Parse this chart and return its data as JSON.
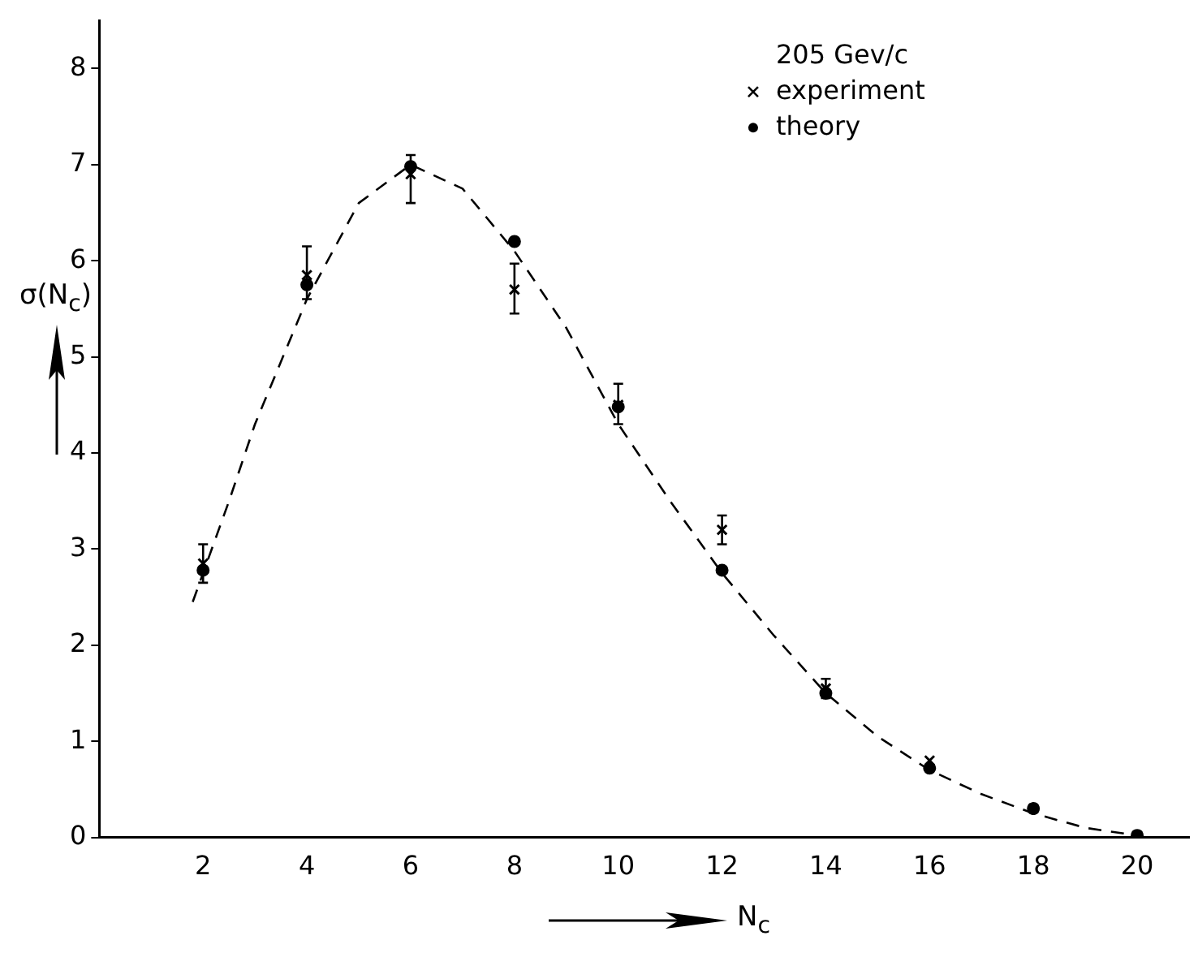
{
  "chart_data": {
    "type": "scatter",
    "xlabel": "N$_{c}$",
    "ylabel": "σ(N$_{c}$)",
    "legend_title": "205 Gev/c",
    "legend": "top right",
    "grid": false,
    "xlim": [
      0,
      21
    ],
    "xticks": [
      2,
      4,
      6,
      8,
      10,
      12,
      14,
      16,
      18,
      20
    ],
    "ylim": [
      0,
      8.5
    ],
    "yticks": [
      0,
      1,
      2,
      3,
      4,
      5,
      6,
      7,
      8
    ],
    "series": [
      {
        "name": "experiment",
        "marker": "cross",
        "color": "#000000",
        "x": [
          2,
          4,
          6,
          8,
          10,
          12,
          14,
          16,
          18,
          20
        ],
        "values": [
          2.85,
          5.85,
          6.9,
          5.7,
          4.5,
          3.2,
          1.55,
          0.8,
          0.3,
          0.02
        ],
        "errors": [
          [
            2.65,
            3.05
          ],
          [
            5.6,
            6.15
          ],
          [
            6.6,
            7.1
          ],
          [
            5.45,
            5.97
          ],
          [
            4.3,
            4.72
          ],
          [
            3.05,
            3.35
          ],
          [
            1.45,
            1.65
          ],
          null,
          null,
          null
        ]
      },
      {
        "name": "theory",
        "marker": "circle",
        "color": "#000000",
        "x": [
          2,
          4,
          6,
          8,
          10,
          12,
          14,
          16,
          18,
          20
        ],
        "values": [
          2.78,
          5.75,
          6.98,
          6.2,
          4.48,
          2.78,
          1.5,
          0.72,
          0.3,
          0.02
        ]
      },
      {
        "type": "line",
        "line_style": "dashed",
        "marker": "none",
        "color": "#000000",
        "x": [
          1.8,
          2.5,
          3,
          4,
          5,
          6,
          7,
          8,
          9,
          10,
          11,
          12,
          13,
          14,
          15,
          16,
          17,
          18,
          19,
          20
        ],
        "values": [
          2.45,
          3.5,
          4.3,
          5.6,
          6.6,
          7.0,
          6.75,
          6.1,
          5.3,
          4.3,
          3.5,
          2.75,
          2.1,
          1.5,
          1.05,
          0.7,
          0.45,
          0.25,
          0.1,
          0.02
        ]
      }
    ]
  }
}
